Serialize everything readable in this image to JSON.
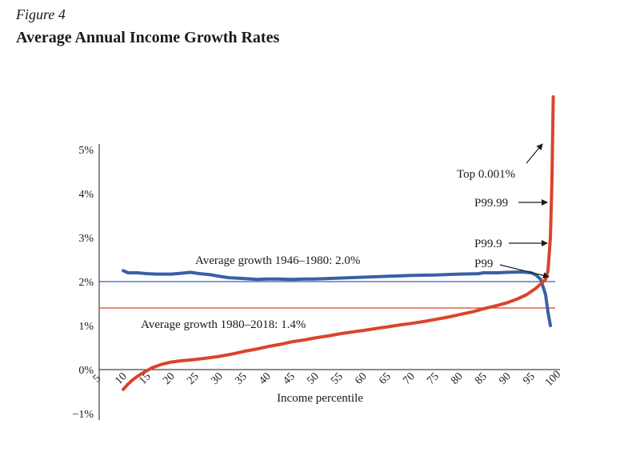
{
  "figure_label": "Figure 4",
  "title": "Average Annual Income Growth Rates",
  "chart_data": {
    "type": "line",
    "title": "Average Annual Income Growth Rates",
    "xlabel": "Income percentile",
    "ylabel": "",
    "xlim": [
      5,
      100
    ],
    "ylim": [
      -1,
      5
    ],
    "x_ticks": [
      "5",
      "10",
      "15",
      "20",
      "25",
      "30",
      "35",
      "40",
      "45",
      "50",
      "55",
      "60",
      "65",
      "70",
      "75",
      "80",
      "85",
      "90",
      "95",
      "100"
    ],
    "y_ticks": [
      "−1%",
      "0%",
      "1%",
      "2%",
      "3%",
      "4%",
      "5%"
    ],
    "colors": {
      "series_1946_1980": "#3a5fa8",
      "series_1980_2018": "#d9452b"
    },
    "reference_lines": [
      {
        "label": "Average growth 1946–1980: 2.0%",
        "value": 2.0,
        "color": "#3a5fa8"
      },
      {
        "label": "Average growth 1980–2018: 1.4%",
        "value": 1.4,
        "color": "#d9452b"
      }
    ],
    "series": [
      {
        "key": "1946_1980",
        "color": "#3a5fa8",
        "x": [
          10,
          11,
          13,
          15,
          17,
          20,
          22,
          24,
          26,
          28,
          30,
          32,
          35,
          38,
          40,
          42,
          45,
          48,
          50,
          55,
          60,
          65,
          70,
          75,
          80,
          84,
          85,
          88,
          90,
          93,
          95,
          96,
          97,
          98,
          98.5,
          99
        ],
        "y": [
          2.25,
          2.2,
          2.2,
          2.18,
          2.17,
          2.17,
          2.19,
          2.21,
          2.18,
          2.16,
          2.12,
          2.09,
          2.07,
          2.05,
          2.06,
          2.06,
          2.05,
          2.06,
          2.06,
          2.08,
          2.1,
          2.12,
          2.14,
          2.15,
          2.17,
          2.18,
          2.2,
          2.2,
          2.21,
          2.22,
          2.2,
          2.15,
          2.05,
          1.7,
          1.3,
          1.0
        ]
      },
      {
        "key": "1980_2018",
        "color": "#d9452b",
        "x": [
          10,
          11,
          12,
          13,
          14,
          15,
          16,
          17,
          18,
          20,
          22,
          25,
          28,
          30,
          33,
          35,
          38,
          40,
          43,
          45,
          48,
          50,
          53,
          55,
          58,
          60,
          63,
          65,
          68,
          70,
          73,
          75,
          78,
          80,
          83,
          85,
          88,
          90,
          92,
          94,
          96,
          97,
          98,
          98.5,
          99,
          99.3,
          99.6
        ],
        "y": [
          -0.45,
          -0.33,
          -0.23,
          -0.15,
          -0.08,
          -0.02,
          0.04,
          0.08,
          0.12,
          0.17,
          0.2,
          0.23,
          0.27,
          0.3,
          0.36,
          0.41,
          0.47,
          0.52,
          0.58,
          0.63,
          0.68,
          0.72,
          0.77,
          0.81,
          0.86,
          0.89,
          0.94,
          0.97,
          1.02,
          1.05,
          1.1,
          1.14,
          1.2,
          1.25,
          1.32,
          1.38,
          1.46,
          1.52,
          1.6,
          1.7,
          1.85,
          1.95,
          2.05,
          2.25,
          3.0,
          4.2,
          6.2
        ]
      }
    ],
    "annotations": [
      {
        "text": "Top 0.001%"
      },
      {
        "text": "P99.99"
      },
      {
        "text": "P99.9"
      },
      {
        "text": "P99"
      }
    ]
  }
}
